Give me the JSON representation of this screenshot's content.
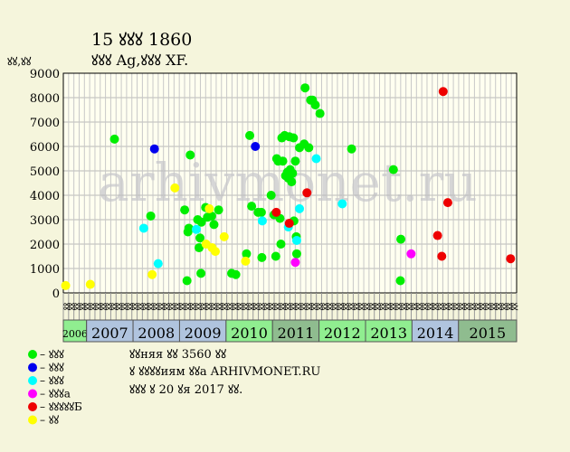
{
  "chart_data": {
    "type": "scatter",
    "title": "15 ꙋꙋꙋ 1860",
    "subtitle": "ꙋꙋꙋ Ag,ꙋꙋꙋ XF.",
    "ylabel": "ꙋꙋ,ꙋꙋ",
    "ylim": [
      0,
      9000
    ],
    "y_ticks": [
      "0",
      "1000",
      "2000",
      "3000",
      "4000",
      "5000",
      "6000",
      "7000",
      "8000",
      "9000"
    ],
    "grid": true,
    "watermark": "arhivmonet.ru",
    "x_tick_labels": [
      "ꙋꙋ",
      "ꙋꙋ",
      "ꙋꙋ",
      "ꙋꙋ",
      "ꙋꙋ",
      "ꙋꙋ",
      "ꙋꙋ",
      "ꙋꙋ",
      "ꙋꙋ",
      "ꙋꙋ",
      "ꙋꙋ",
      "ꙋꙋ",
      "ꙋꙋ",
      "ꙋꙋ",
      "ꙋꙋ",
      "ꙋꙋ",
      "ꙋꙋ",
      "ꙋꙋ",
      "ꙋꙋ",
      "ꙋꙋ",
      "ꙋꙋ",
      "ꙋꙋ",
      "ꙋꙋ",
      "ꙋꙋ",
      "ꙋꙋ",
      "ꙋꙋ",
      "ꙋꙋ",
      "ꙋꙋ",
      "ꙋꙋ",
      "ꙋꙋ",
      "ꙋꙋ",
      "ꙋꙋ",
      "ꙋꙋ",
      "ꙋꙋ",
      "ꙋꙋ",
      "ꙋꙋ",
      "ꙋꙋ",
      "ꙋꙋ",
      "ꙋꙋ",
      "ꙋꙋ",
      "ꙋꙋ",
      "ꙋꙋ",
      "ꙋꙋ",
      "ꙋꙋ",
      "ꙋꙋ",
      "ꙋꙋ",
      "ꙋꙋ",
      "ꙋꙋ",
      "ꙋꙋ",
      "ꙋꙋ",
      "ꙋꙋ",
      "ꙋꙋ",
      "ꙋꙋ",
      "ꙋꙋ",
      "ꙋꙋ",
      "ꙋꙋ",
      "ꙋꙋ",
      "ꙋꙋ",
      "ꙋꙋ",
      "ꙋꙋ",
      "ꙋꙋ",
      "ꙋꙋ",
      "ꙋꙋ",
      "ꙋꙋ",
      "ꙋꙋ",
      "ꙋꙋ",
      "ꙋꙋ",
      "ꙋꙋ",
      "ꙋꙋ",
      "ꙋꙋ",
      "ꙋꙋ",
      "ꙋꙋ",
      "ꙋꙋ",
      "ꙋꙋ",
      "ꙋꙋ",
      "ꙋꙋ",
      "ꙋꙋ",
      "ꙋꙋ",
      "ꙋꙋ",
      "ꙋꙋ",
      "ꙋꙋ",
      "ꙋꙋ",
      "ꙋꙋ",
      "ꙋꙋ",
      "ꙋꙋ",
      "ꙋꙋ"
    ],
    "x_range": [
      2006.0,
      2015.75
    ],
    "years": [
      {
        "label": "2006",
        "start": 2006.0,
        "end": 2006.5,
        "color": "#90ee90",
        "small": true
      },
      {
        "label": "2007",
        "start": 2006.5,
        "end": 2007.5,
        "color": "#b0c4de"
      },
      {
        "label": "2008",
        "start": 2007.5,
        "end": 2008.5,
        "color": "#b0c4de"
      },
      {
        "label": "2009",
        "start": 2008.5,
        "end": 2009.5,
        "color": "#b0c4de"
      },
      {
        "label": "2010",
        "start": 2009.5,
        "end": 2010.5,
        "color": "#90ee90"
      },
      {
        "label": "2011",
        "start": 2010.5,
        "end": 2011.5,
        "color": "#8fbc8f"
      },
      {
        "label": "2012",
        "start": 2011.5,
        "end": 2012.5,
        "color": "#90ee90"
      },
      {
        "label": "2013",
        "start": 2012.5,
        "end": 2013.5,
        "color": "#90ee90"
      },
      {
        "label": "2014",
        "start": 2013.5,
        "end": 2014.5,
        "color": "#b0c4de"
      },
      {
        "label": "2015",
        "start": 2014.5,
        "end": 2015.75,
        "color": "#8fbc8f"
      }
    ],
    "legend": [
      {
        "label": "– ꙋꙋꙋ",
        "color": "#00ee00"
      },
      {
        "label": "– ꙋꙋꙋ",
        "color": "#0000ee"
      },
      {
        "label": "– ꙋꙋꙋ",
        "color": "#00ffff"
      },
      {
        "label": "– ꙋꙋꙋa",
        "color": "#ff00ff"
      },
      {
        "label": "– ꙋꙋꙋꙋꙋБ",
        "color": "#ee0000"
      },
      {
        "label": "– ꙋꙋ",
        "color": "#ffff00"
      }
    ],
    "notes": [
      "ꙋꙋняя ꙋꙋ 3560 ꙋꙋ",
      "ꙋ ꙋꙋꙋꙋиям ꙋꙋa ARHIVMONET.RU",
      "ꙋꙋꙋ ꙋ 20 ꙋя 2017 ꙋꙋ."
    ],
    "series": [
      {
        "color": "#00ee00",
        "points": [
          [
            2007.1,
            6300
          ],
          [
            2007.88,
            3150
          ],
          [
            2008.61,
            3400
          ],
          [
            2008.68,
            2500
          ],
          [
            2008.7,
            2650
          ],
          [
            2008.73,
            5650
          ],
          [
            2008.66,
            500
          ],
          [
            2008.89,
            3000
          ],
          [
            2008.92,
            1850
          ],
          [
            2008.94,
            2250
          ],
          [
            2008.97,
            2900
          ],
          [
            2008.96,
            800
          ],
          [
            2009.06,
            3500
          ],
          [
            2009.1,
            3100
          ],
          [
            2009.19,
            3150
          ],
          [
            2009.24,
            2800
          ],
          [
            2009.34,
            3400
          ],
          [
            2009.62,
            800
          ],
          [
            2009.71,
            750
          ],
          [
            2009.94,
            1600
          ],
          [
            2010.01,
            6450
          ],
          [
            2010.05,
            3550
          ],
          [
            2010.19,
            3300
          ],
          [
            2010.26,
            3300
          ],
          [
            2010.27,
            1450
          ],
          [
            2010.47,
            4000
          ],
          [
            2010.53,
            3200
          ],
          [
            2010.57,
            1500
          ],
          [
            2010.59,
            5500
          ],
          [
            2010.62,
            5400
          ],
          [
            2010.66,
            3050
          ],
          [
            2010.68,
            2000
          ],
          [
            2010.7,
            6350
          ],
          [
            2010.72,
            5400
          ],
          [
            2010.76,
            6450
          ],
          [
            2010.78,
            4800
          ],
          [
            2010.82,
            4950
          ],
          [
            2010.84,
            4700
          ],
          [
            2010.86,
            6400
          ],
          [
            2010.88,
            5050
          ],
          [
            2010.91,
            4550
          ],
          [
            2010.93,
            4900
          ],
          [
            2010.95,
            6350
          ],
          [
            2010.96,
            2950
          ],
          [
            2010.99,
            5400
          ],
          [
            2011.01,
            2300
          ],
          [
            2011.02,
            1600
          ],
          [
            2011.08,
            5950
          ],
          [
            2011.18,
            6100
          ],
          [
            2011.2,
            8400
          ],
          [
            2011.28,
            5950
          ],
          [
            2011.32,
            7900
          ],
          [
            2011.36,
            7900
          ],
          [
            2011.42,
            7700
          ],
          [
            2011.52,
            7350
          ],
          [
            2012.2,
            5900
          ],
          [
            2013.1,
            5050
          ],
          [
            2013.26,
            2200
          ],
          [
            2013.25,
            500
          ]
        ]
      },
      {
        "color": "#0000ee",
        "points": [
          [
            2007.96,
            5900
          ],
          [
            2010.13,
            6000
          ]
        ]
      },
      {
        "color": "#00ffff",
        "points": [
          [
            2007.73,
            2650
          ],
          [
            2008.04,
            1200
          ],
          [
            2008.86,
            2600
          ],
          [
            2010.28,
            2950
          ],
          [
            2010.84,
            2700
          ],
          [
            2011.02,
            2150
          ],
          [
            2011.08,
            3450
          ],
          [
            2011.44,
            5500
          ],
          [
            2012.0,
            3650
          ]
        ]
      },
      {
        "color": "#ff00ff",
        "points": [
          [
            2010.99,
            1250
          ],
          [
            2013.48,
            1600
          ]
        ]
      },
      {
        "color": "#ee0000",
        "points": [
          [
            2010.58,
            3300
          ],
          [
            2010.86,
            2850
          ],
          [
            2011.24,
            4100
          ],
          [
            2014.05,
            2350
          ],
          [
            2014.14,
            1500
          ],
          [
            2014.17,
            8250
          ],
          [
            2014.27,
            3700
          ],
          [
            2015.62,
            1400
          ]
        ]
      },
      {
        "color": "#ffff00",
        "points": [
          [
            2006.05,
            300
          ],
          [
            2006.58,
            350
          ],
          [
            2007.91,
            750
          ],
          [
            2008.4,
            4300
          ],
          [
            2009.07,
            2000
          ],
          [
            2009.14,
            3450
          ],
          [
            2009.2,
            1850
          ],
          [
            2009.27,
            1700
          ],
          [
            2009.46,
            2300
          ],
          [
            2009.92,
            1300
          ]
        ]
      }
    ]
  }
}
